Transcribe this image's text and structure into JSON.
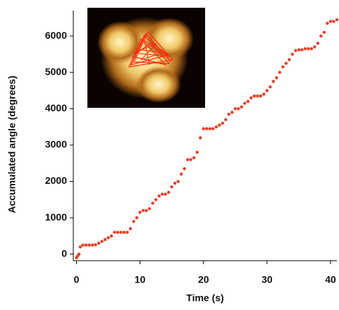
{
  "chart_data": {
    "type": "scatter",
    "xlabel": "Time (s)",
    "ylabel": "Accumulated angle (degrees)",
    "color": "#e8402a",
    "xlim": [
      -0.5,
      41
    ],
    "xticks": [
      0,
      10,
      20,
      30,
      40
    ],
    "ylim": [
      -180,
      6700
    ],
    "yticks": [
      0,
      1000,
      2000,
      3000,
      4000,
      5000,
      6000
    ],
    "grid": false,
    "x": [
      0,
      0.2,
      0.4,
      0.6,
      1,
      1.5,
      2,
      2.5,
      3,
      3.5,
      4,
      4.5,
      5,
      5.5,
      6,
      6.5,
      7,
      7.5,
      8,
      8.5,
      9,
      9.5,
      10,
      10.5,
      11,
      11.5,
      12,
      12.5,
      13,
      13.5,
      14,
      14.5,
      15,
      15.5,
      16,
      16.5,
      17,
      17.5,
      18,
      18.5,
      19,
      19.5,
      20,
      20.5,
      21,
      21.5,
      22,
      22.5,
      23,
      23.5,
      24,
      24.5,
      25,
      25.5,
      26,
      26.5,
      27,
      27.5,
      28,
      28.5,
      29,
      29.5,
      30,
      30.5,
      31,
      31.5,
      32,
      32.5,
      33,
      33.5,
      34,
      34.5,
      35,
      35.5,
      36,
      36.5,
      37,
      37.5,
      38,
      38.5,
      39,
      39.5,
      40,
      40.5,
      41
    ],
    "values": [
      -100,
      -50,
      0,
      200,
      250,
      250,
      250,
      250,
      260,
      300,
      350,
      400,
      450,
      500,
      600,
      600,
      600,
      600,
      600,
      700,
      900,
      1000,
      1150,
      1200,
      1200,
      1250,
      1400,
      1500,
      1600,
      1650,
      1650,
      1700,
      1850,
      1950,
      2000,
      2200,
      2350,
      2600,
      2600,
      2650,
      2800,
      3200,
      3450,
      3450,
      3450,
      3450,
      3500,
      3550,
      3600,
      3700,
      3850,
      3900,
      4000,
      4000,
      4050,
      4150,
      4200,
      4300,
      4350,
      4350,
      4350,
      4400,
      4500,
      4600,
      4750,
      4850,
      5000,
      5150,
      5250,
      5350,
      5500,
      5600,
      5620,
      5620,
      5650,
      5650,
      5650,
      5700,
      5800,
      6000,
      6100,
      6350,
      6400,
      6400,
      6450
    ]
  }
}
